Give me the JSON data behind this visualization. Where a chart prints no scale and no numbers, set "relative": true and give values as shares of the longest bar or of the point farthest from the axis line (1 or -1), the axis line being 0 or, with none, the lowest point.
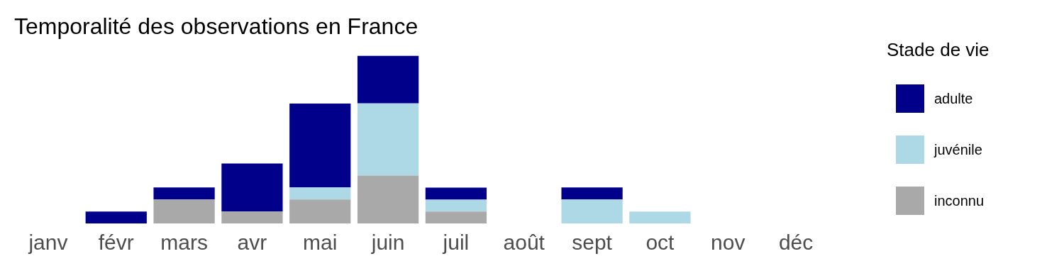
{
  "chart_data": {
    "type": "bar",
    "title": "Temporalité des observations en France",
    "categories": [
      "janv",
      "févr",
      "mars",
      "avr",
      "mai",
      "juin",
      "juil",
      "août",
      "sept",
      "oct",
      "nov",
      "déc"
    ],
    "relative": true,
    "stacked": true,
    "legend": "right",
    "legend_title": "Stade de vie",
    "series": [
      {
        "name": "inconnu",
        "color": "#a9a9a9",
        "values": [
          0,
          0,
          0.143,
          0.071,
          0.143,
          0.285,
          0.071,
          0,
          0,
          0,
          0,
          0
        ]
      },
      {
        "name": "juvénile",
        "color": "#add8e6",
        "values": [
          0,
          0,
          0,
          0,
          0.071,
          0.43,
          0.071,
          0,
          0.143,
          0.071,
          0,
          0
        ]
      },
      {
        "name": "adulte",
        "color": "#00008b",
        "values": [
          0,
          0.071,
          0.071,
          0.286,
          0.5,
          0.285,
          0.071,
          0,
          0.071,
          0,
          0,
          0
        ]
      }
    ]
  }
}
